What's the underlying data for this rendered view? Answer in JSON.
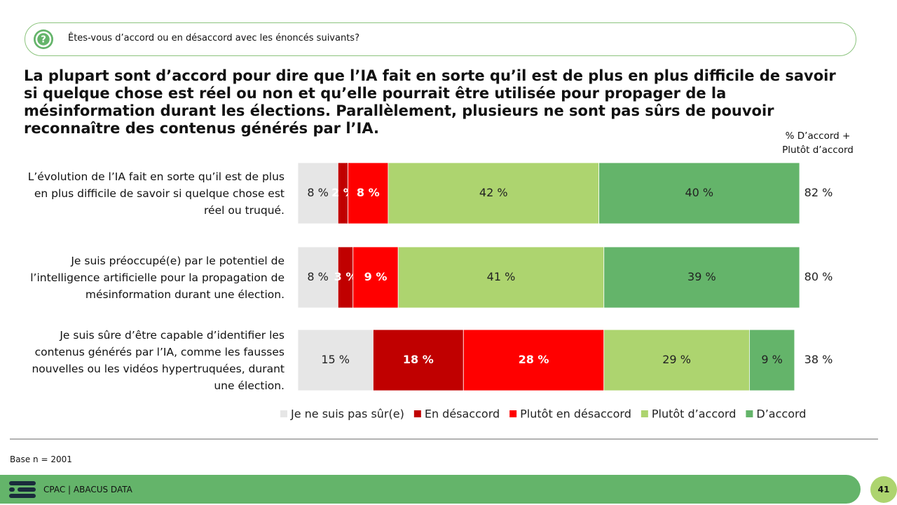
{
  "header": {
    "question": "Êtes-vous d’accord ou en désaccord avec les énoncés suivants?"
  },
  "chart_data": {
    "type": "stacked-bar-horizontal",
    "title": "La plupart sont d’accord pour dire que l’IA fait en sorte qu’il est de plus en plus difficile de savoir si quelque chose est réel ou non et qu’elle pourrait être utilisée pour propager de la mésinformation durant les élections. Parallèlement, plusieurs ne sont pas sûrs de pouvoir reconnaître des contenus générés par l’IA.",
    "categories": [
      "L’évolution de l’IA fait en sorte qu’il est de plus en plus difficile de savoir si quelque chose est réel ou truqué.",
      "Je suis préoccupé(e) par le potentiel de l’intelligence artificielle pour la propagation de mésinformation durant une élection.",
      "Je suis sûre d’être capable d’identifier les contenus générés par l’IA, comme les fausses nouvelles ou les vidéos hypertruquées, durant une élection."
    ],
    "series": [
      {
        "name": "Je ne suis pas sûr(e)",
        "color": "#e6e6e6",
        "values": [
          8,
          8,
          15
        ],
        "value_labels": [
          "8 %",
          "8 %",
          "15 %"
        ]
      },
      {
        "name": "En désaccord",
        "color": "#c00000",
        "values": [
          2,
          3,
          18
        ],
        "value_labels": [
          "2 %",
          "3 %",
          "18 %"
        ]
      },
      {
        "name": "Plutôt en désaccord",
        "color": "#ff0000",
        "values": [
          8,
          9,
          28
        ],
        "value_labels": [
          "8 %",
          "9 %",
          "28 %"
        ]
      },
      {
        "name": "Plutôt d’accord",
        "color": "#add46f",
        "values": [
          42,
          41,
          29
        ],
        "value_labels": [
          "42 %",
          "41 %",
          "29 %"
        ]
      },
      {
        "name": "D’accord",
        "color": "#64b46a",
        "values": [
          40,
          39,
          9
        ],
        "value_labels": [
          "40 %",
          "39 %",
          "9 %"
        ]
      }
    ],
    "net_header": "% D’accord + Plutôt d’accord",
    "net": [
      {
        "value": 82,
        "label": "82 %"
      },
      {
        "value": 80,
        "label": "80 %"
      },
      {
        "value": 38,
        "label": "38 %"
      }
    ],
    "xlim": [
      0,
      100
    ]
  },
  "footer": {
    "base": "Base n = 2001",
    "source": "CPAC | ABACUS DATA",
    "page": "41"
  }
}
